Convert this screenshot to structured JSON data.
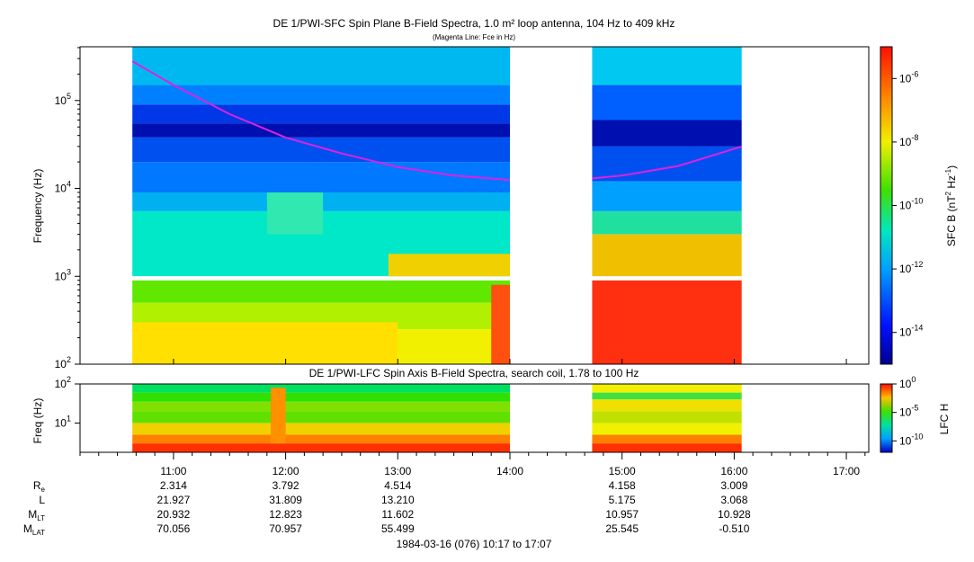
{
  "chart_data": [
    {
      "type": "heatmap",
      "title": "DE 1/PWI-SFC  Spin Plane B-Field Spectra, 1.0 m² loop antenna, 104 Hz to 409 kHz",
      "subtitle": "(Magenta Line: Fce in Hz)",
      "ylabel": "Frequency (Hz)",
      "yscale": "log",
      "ylim": [
        100,
        409000
      ],
      "yticks": [
        {
          "value": 100,
          "base": "10",
          "exp": "2"
        },
        {
          "value": 1000,
          "base": "10",
          "exp": "3"
        },
        {
          "value": 10000,
          "base": "10",
          "exp": "4"
        },
        {
          "value": 100000,
          "base": "10",
          "exp": "5"
        }
      ],
      "colorbar": {
        "label_base": "SFC B (nT",
        "label_sup1": "2",
        "label_mid": " Hz",
        "label_sup2": "-1",
        "label_end": ")",
        "scale": "log",
        "range": [
          1e-15,
          1e-05
        ],
        "ticks": [
          {
            "value": 1e-06,
            "base": "10",
            "exp": "-6"
          },
          {
            "value": 1e-08,
            "base": "10",
            "exp": "-8"
          },
          {
            "value": 1e-10,
            "base": "10",
            "exp": "-10"
          },
          {
            "value": 1e-12,
            "base": "10",
            "exp": "-12"
          },
          {
            "value": 1e-14,
            "base": "10",
            "exp": "-14"
          }
        ]
      },
      "data_intervals": [
        {
          "start": "10:38",
          "end": "14:00"
        },
        {
          "start": "14:44",
          "end": "16:04"
        }
      ],
      "fce_line": {
        "name": "Fce",
        "color": "#e020e0",
        "points": [
          {
            "t": "10:38",
            "f": 280000
          },
          {
            "t": "11:00",
            "f": 150000
          },
          {
            "t": "11:30",
            "f": 70000
          },
          {
            "t": "12:00",
            "f": 38000
          },
          {
            "t": "12:30",
            "f": 25000
          },
          {
            "t": "13:00",
            "f": 17500
          },
          {
            "t": "13:30",
            "f": 14000
          },
          {
            "t": "14:00",
            "f": 12500
          },
          {
            "t": "14:44",
            "f": 13000
          },
          {
            "t": "15:00",
            "f": 14000
          },
          {
            "t": "15:30",
            "f": 18000
          },
          {
            "t": "16:04",
            "f": 30000
          }
        ]
      }
    },
    {
      "type": "heatmap",
      "title": "DE 1/PWI-LFC  Spin Axis B-Field Spectra, search coil, 1.78 to 100 Hz",
      "ylabel": "Freq (Hz)",
      "yscale": "log",
      "ylim": [
        1.78,
        100
      ],
      "yticks": [
        {
          "value": 10,
          "base": "10",
          "exp": "1"
        },
        {
          "value": 100,
          "base": "10",
          "exp": "2"
        }
      ],
      "colorbar": {
        "label": "LFC H",
        "scale": "log",
        "range": [
          1e-12,
          1
        ],
        "ticks": [
          {
            "value": 1,
            "base": "10",
            "exp": "0"
          },
          {
            "value": 1e-05,
            "base": "10",
            "exp": "-5"
          },
          {
            "value": 1e-10,
            "base": "10",
            "exp": "-10"
          }
        ]
      },
      "data_intervals": [
        {
          "start": "10:38",
          "end": "14:00"
        },
        {
          "start": "14:44",
          "end": "16:04"
        }
      ]
    }
  ],
  "time_axis": {
    "range": [
      "10:10",
      "17:12"
    ],
    "ticks": [
      "11:00",
      "12:00",
      "13:00",
      "14:00",
      "15:00",
      "16:00",
      "17:00"
    ]
  },
  "ephemeris": {
    "rows": [
      {
        "label": "R",
        "sub": "e",
        "values": [
          "2.314",
          "3.792",
          "4.514",
          "",
          "4.158",
          "3.009",
          ""
        ]
      },
      {
        "label": "L",
        "sub": "",
        "values": [
          "21.927",
          "31.809",
          "13.210",
          "",
          "5.175",
          "3.068",
          ""
        ]
      },
      {
        "label": "M",
        "sub": "LT",
        "values": [
          "20.932",
          "12.823",
          "11.602",
          "",
          "10.957",
          "10.928",
          ""
        ]
      },
      {
        "label": "M",
        "sub": "LAT",
        "values": [
          "70.056",
          "70.957",
          "55.499",
          "",
          "25.545",
          "-0.510",
          ""
        ]
      }
    ]
  },
  "footer": "1984-03-16 (076) 10:17 to 17:07"
}
